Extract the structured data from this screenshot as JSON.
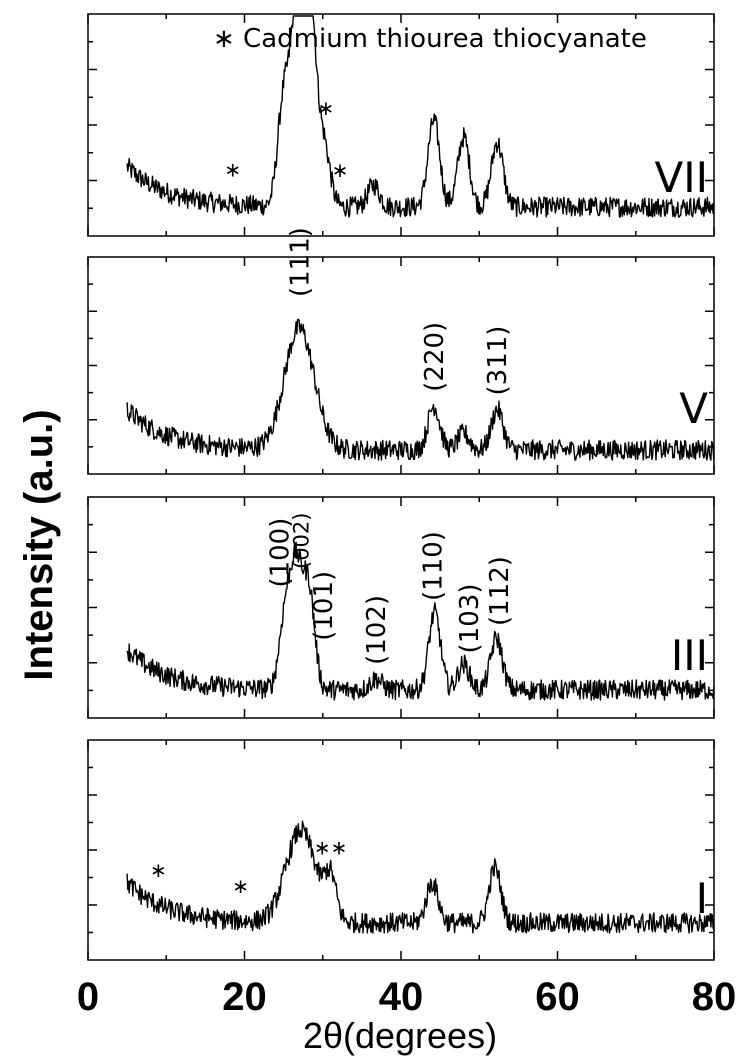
{
  "chart_data": {
    "type": "line",
    "title": "",
    "xlabel": "2θ(degrees)",
    "ylabel": "Intensity (a.u.)",
    "xlim": [
      0,
      80
    ],
    "x_ticks": [
      "0",
      "20",
      "40",
      "60",
      "80"
    ],
    "legend_text": "∗ Cadmium thiourea thiocyanate",
    "panels": [
      {
        "name": "VII",
        "peaks": [
          {
            "x": 25.0,
            "height": 0.58
          },
          {
            "x": 26.6,
            "height": 0.88
          },
          {
            "x": 27.5,
            "height": 0.5
          },
          {
            "x": 28.5,
            "height": 0.94
          },
          {
            "x": 30.2,
            "height": 0.32
          },
          {
            "x": 36.5,
            "height": 0.12
          },
          {
            "x": 44.2,
            "height": 0.47
          },
          {
            "x": 48.0,
            "height": 0.38
          },
          {
            "x": 52.3,
            "height": 0.35
          }
        ],
        "markers": [
          {
            "x": 18.5,
            "text": "∗"
          },
          {
            "x": 30.4,
            "text": "∗"
          },
          {
            "x": 32.2,
            "text": "∗"
          }
        ],
        "hkl": []
      },
      {
        "name": "V",
        "peaks": [
          {
            "x": 27.0,
            "height": 0.66
          },
          {
            "x": 44.2,
            "height": 0.24
          },
          {
            "x": 48.0,
            "height": 0.09
          },
          {
            "x": 52.3,
            "height": 0.22
          }
        ],
        "markers": [],
        "hkl": [
          {
            "x": 27.0,
            "text": "(111)"
          },
          {
            "x": 44.2,
            "text": "(220)"
          },
          {
            "x": 52.3,
            "text": "(311)"
          }
        ]
      },
      {
        "name": "III",
        "peaks": [
          {
            "x": 25.2,
            "height": 0.4
          },
          {
            "x": 26.6,
            "height": 0.62
          },
          {
            "x": 28.2,
            "height": 0.55
          },
          {
            "x": 36.8,
            "height": 0.06
          },
          {
            "x": 44.3,
            "height": 0.42
          },
          {
            "x": 48.0,
            "height": 0.14
          },
          {
            "x": 52.2,
            "height": 0.28
          }
        ],
        "markers": [],
        "hkl": [
          {
            "x": 24.5,
            "text": "(100)"
          },
          {
            "x": 27.0,
            "text": "(002)"
          },
          {
            "x": 30.0,
            "text": "(101)"
          },
          {
            "x": 36.8,
            "text": "(102)"
          },
          {
            "x": 44.0,
            "text": "(110)"
          },
          {
            "x": 48.7,
            "text": "(103)"
          },
          {
            "x": 52.5,
            "text": "(112)"
          }
        ]
      },
      {
        "name": "I",
        "peaks": [
          {
            "x": 27.2,
            "height": 0.5
          },
          {
            "x": 31.0,
            "height": 0.22
          },
          {
            "x": 44.0,
            "height": 0.22
          },
          {
            "x": 52.0,
            "height": 0.3
          }
        ],
        "markers": [
          {
            "x": 9.0,
            "text": "∗"
          },
          {
            "x": 19.5,
            "text": "∗"
          },
          {
            "x": 31.0,
            "text": "∗∗"
          }
        ],
        "hkl": []
      }
    ]
  }
}
